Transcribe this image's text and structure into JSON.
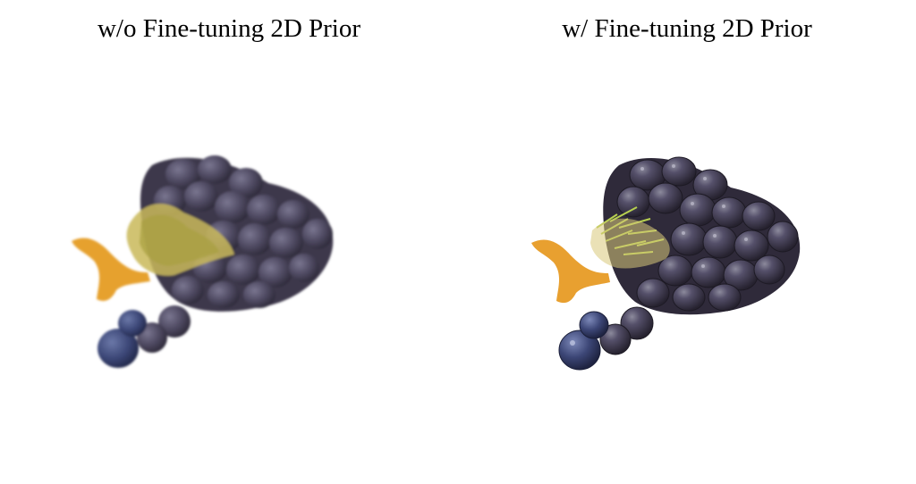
{
  "panels": [
    {
      "title": "w/o Fine-tuning 2D Prior",
      "subject": "grape-cluster-render",
      "variant": "blurry"
    },
    {
      "title": "w/ Fine-tuning 2D Prior",
      "subject": "grape-cluster-render",
      "variant": "sharp"
    }
  ],
  "colors": {
    "background": "#ffffff",
    "grape_dark": "#3a3448",
    "grape_mid": "#4e4a63",
    "grape_light": "#6e6a86",
    "grape_blue": "#3d4a78",
    "stem_orange": "#e8a030",
    "stem_green": "#a8c040"
  }
}
